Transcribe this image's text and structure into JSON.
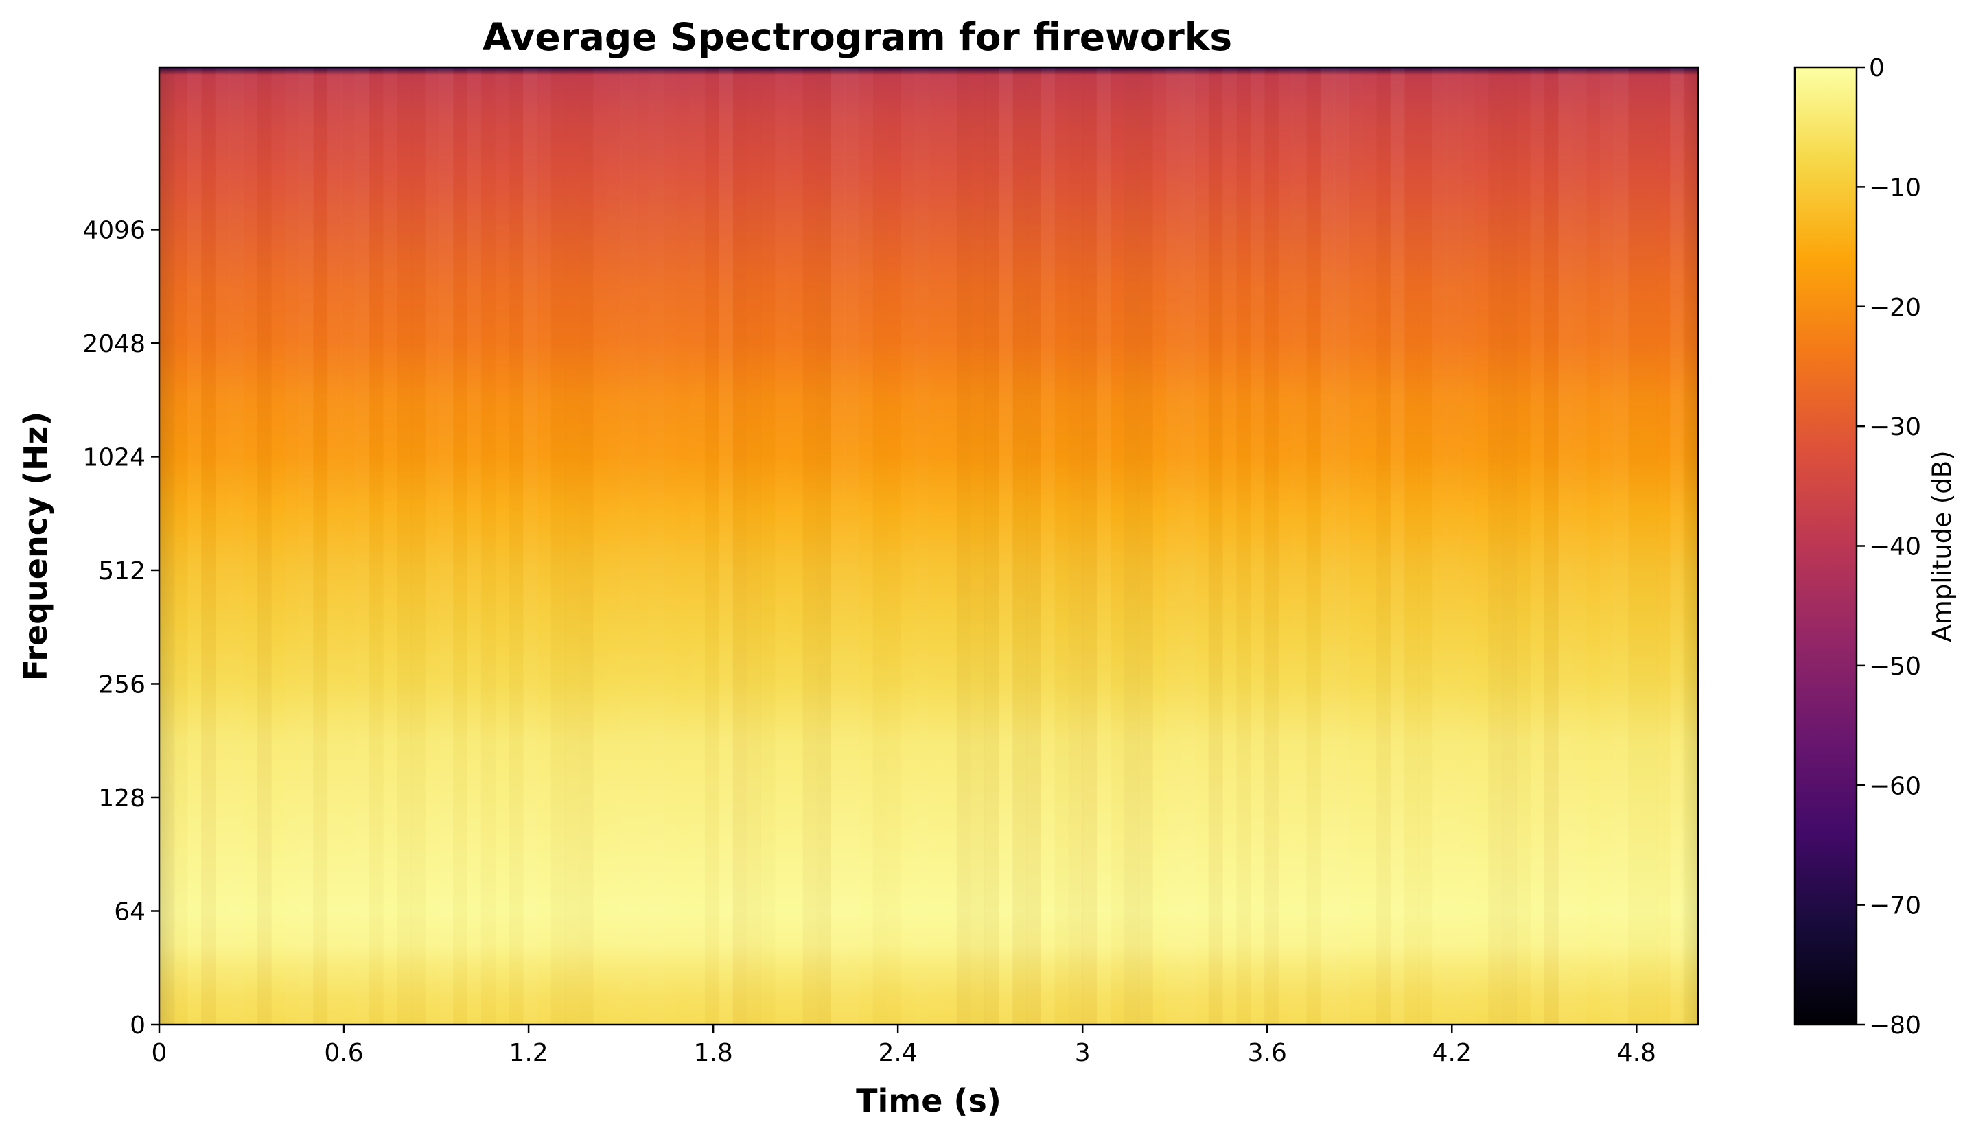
{
  "chart_data": {
    "type": "heatmap",
    "title": "Average Spectrogram for fireworks",
    "xlabel": "Time (s)",
    "ylabel": "Frequency (Hz)",
    "colorbar_label": "Amplitude (dB)",
    "colormap": "inferno",
    "x_scale": "linear",
    "y_scale": "log2",
    "xlim": [
      0,
      5.0
    ],
    "ylim": [
      0,
      11025
    ],
    "clim": [
      -80,
      0
    ],
    "x_ticks": [
      {
        "value": 0,
        "label": "0"
      },
      {
        "value": 0.6,
        "label": "0.6"
      },
      {
        "value": 1.2,
        "label": "1.2"
      },
      {
        "value": 1.8,
        "label": "1.8"
      },
      {
        "value": 2.4,
        "label": "2.4"
      },
      {
        "value": 3.0,
        "label": "3"
      },
      {
        "value": 3.6,
        "label": "3.6"
      },
      {
        "value": 4.2,
        "label": "4.2"
      },
      {
        "value": 4.8,
        "label": "4.8"
      }
    ],
    "y_ticks": [
      {
        "value": 0,
        "label": "0"
      },
      {
        "value": 64,
        "label": "64"
      },
      {
        "value": 128,
        "label": "128"
      },
      {
        "value": 256,
        "label": "256"
      },
      {
        "value": 512,
        "label": "512"
      },
      {
        "value": 1024,
        "label": "1024"
      },
      {
        "value": 2048,
        "label": "2048"
      },
      {
        "value": 4096,
        "label": "4096"
      }
    ],
    "colorbar_ticks": [
      {
        "value": 0,
        "label": "0"
      },
      {
        "value": -10,
        "label": "−10"
      },
      {
        "value": -20,
        "label": "−20"
      },
      {
        "value": -30,
        "label": "−30"
      },
      {
        "value": -40,
        "label": "−40"
      },
      {
        "value": -50,
        "label": "−50"
      },
      {
        "value": -60,
        "label": "−60"
      },
      {
        "value": -70,
        "label": "−70"
      },
      {
        "value": -80,
        "label": "−80"
      }
    ],
    "amplitude_profile": [
      {
        "freq": 0,
        "db": -7
      },
      {
        "freq": 16,
        "db": -6
      },
      {
        "freq": 32,
        "db": -4
      },
      {
        "freq": 45,
        "db": -2
      },
      {
        "freq": 64,
        "db": -1
      },
      {
        "freq": 90,
        "db": -2
      },
      {
        "freq": 128,
        "db": -3
      },
      {
        "freq": 181,
        "db": -4
      },
      {
        "freq": 256,
        "db": -7
      },
      {
        "freq": 362,
        "db": -9
      },
      {
        "freq": 512,
        "db": -11
      },
      {
        "freq": 724,
        "db": -14
      },
      {
        "freq": 1024,
        "db": -18
      },
      {
        "freq": 1448,
        "db": -20
      },
      {
        "freq": 2048,
        "db": -24
      },
      {
        "freq": 2896,
        "db": -26
      },
      {
        "freq": 4096,
        "db": -29
      },
      {
        "freq": 5793,
        "db": -32
      },
      {
        "freq": 8192,
        "db": -35
      },
      {
        "freq": 10500,
        "db": -38
      },
      {
        "freq": 11025,
        "db": -70
      }
    ]
  }
}
